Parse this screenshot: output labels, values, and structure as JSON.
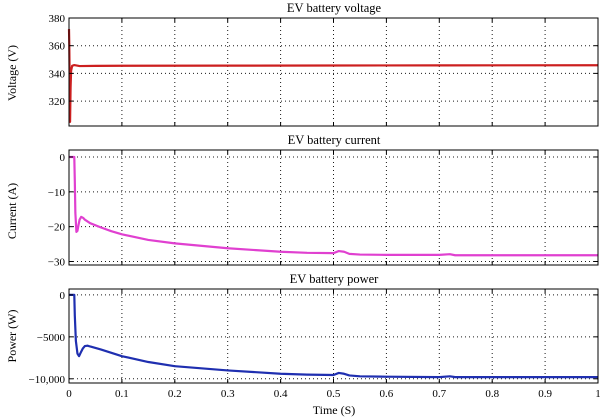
{
  "chart_data": [
    {
      "type": "line",
      "title": "EV battery voltage",
      "ylabel": "Voltage (V)",
      "xlabel": "",
      "xlim": [
        0,
        1
      ],
      "ylim": [
        302,
        380
      ],
      "xticks": [
        0,
        0.1,
        0.2,
        0.3,
        0.4,
        0.5,
        0.6,
        0.7,
        0.8,
        0.9,
        1
      ],
      "yticks": [
        320,
        340,
        360,
        380
      ],
      "ytick_labels": [
        "320",
        "340",
        "360",
        "380"
      ],
      "grid": "dotted",
      "color": "#cc1f1f",
      "series": [
        {
          "x": [
            0,
            0.0005,
            0.001,
            0.0015,
            0.002,
            0.003,
            0.004,
            0.006,
            0.01,
            0.02,
            0.05,
            0.1,
            0.3,
            0.5,
            0.7,
            1.0
          ],
          "y": [
            372,
            362,
            345,
            320,
            305,
            330,
            342,
            345.5,
            346,
            345.3,
            345.4,
            345.5,
            345.6,
            345.7,
            345.8,
            345.9
          ]
        }
      ]
    },
    {
      "type": "line",
      "title": "EV battery current",
      "ylabel": "Current (A)",
      "xlabel": "",
      "xlim": [
        0,
        1
      ],
      "ylim": [
        -31,
        2
      ],
      "xticks": [
        0,
        0.1,
        0.2,
        0.3,
        0.4,
        0.5,
        0.6,
        0.7,
        0.8,
        0.9,
        1
      ],
      "yticks": [
        0,
        -10,
        -20,
        -30
      ],
      "ytick_labels": [
        "0",
        "−10",
        "−20",
        "−30"
      ],
      "grid": "dotted",
      "color": "#e040d0",
      "series": [
        {
          "x": [
            0,
            0.01,
            0.011,
            0.012,
            0.014,
            0.016,
            0.018,
            0.02,
            0.023,
            0.027,
            0.03,
            0.04,
            0.06,
            0.08,
            0.1,
            0.15,
            0.2,
            0.3,
            0.4,
            0.45,
            0.5,
            0.51,
            0.52,
            0.53,
            0.55,
            0.6,
            0.7,
            0.72,
            0.73,
            0.8,
            0.9,
            1.0
          ],
          "y": [
            0,
            0,
            -7,
            -16,
            -21.5,
            -21.2,
            -19.5,
            -18,
            -17.2,
            -17.5,
            -18,
            -19,
            -20.2,
            -21.3,
            -22.2,
            -23.8,
            -24.8,
            -26.2,
            -27.2,
            -27.5,
            -27.6,
            -27.0,
            -27.2,
            -27.8,
            -28.0,
            -28.1,
            -28.1,
            -27.9,
            -28.2,
            -28.2,
            -28.2,
            -28.2
          ]
        }
      ]
    },
    {
      "type": "line",
      "title": "EV battery power",
      "ylabel": "Power (W)",
      "xlabel": "Time (S)",
      "xlim": [
        0,
        1
      ],
      "ylim": [
        -10500,
        700
      ],
      "xticks": [
        0,
        0.1,
        0.2,
        0.3,
        0.4,
        0.5,
        0.6,
        0.7,
        0.8,
        0.9,
        1
      ],
      "xtick_labels": [
        "0",
        "0.1",
        "0.2",
        "0.3",
        "0.4",
        "0.5",
        "0.6",
        "0.7",
        "0.8",
        "0.9",
        "1"
      ],
      "yticks": [
        0,
        -5000,
        -10000
      ],
      "ytick_labels": [
        "0",
        "−5000",
        "−10,000"
      ],
      "grid": "dotted",
      "color": "#1f2fb0",
      "series": [
        {
          "x": [
            0,
            0.01,
            0.011,
            0.013,
            0.016,
            0.019,
            0.022,
            0.026,
            0.03,
            0.035,
            0.04,
            0.06,
            0.08,
            0.1,
            0.15,
            0.2,
            0.3,
            0.4,
            0.45,
            0.5,
            0.51,
            0.52,
            0.53,
            0.55,
            0.6,
            0.7,
            0.72,
            0.73,
            0.8,
            0.9,
            1.0
          ],
          "y": [
            0,
            0,
            -2500,
            -5500,
            -7000,
            -7300,
            -6900,
            -6400,
            -6100,
            -6050,
            -6150,
            -6500,
            -6900,
            -7300,
            -8000,
            -8500,
            -9000,
            -9400,
            -9500,
            -9550,
            -9300,
            -9400,
            -9600,
            -9700,
            -9750,
            -9800,
            -9700,
            -9800,
            -9800,
            -9800,
            -9800
          ]
        }
      ]
    }
  ]
}
